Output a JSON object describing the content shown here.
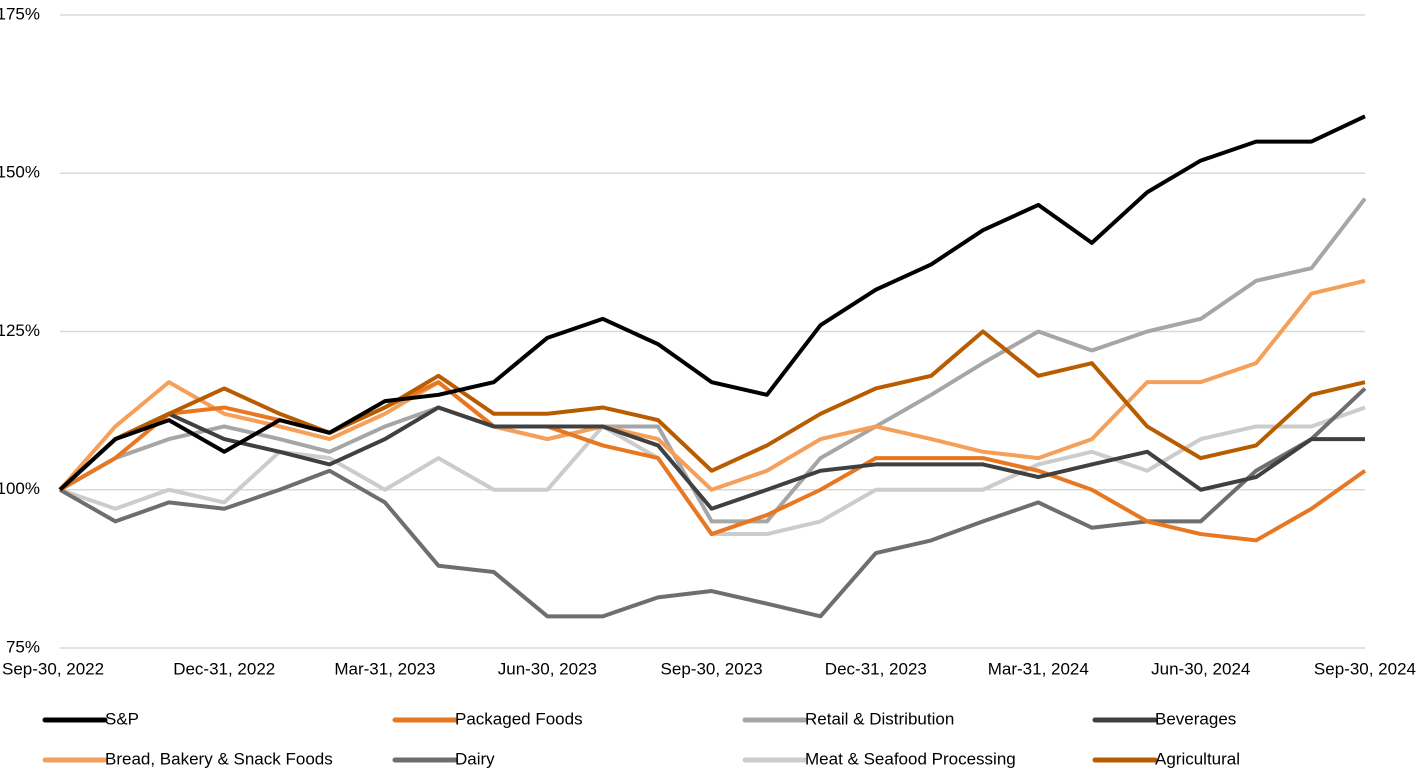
{
  "chart_data": {
    "type": "line",
    "x": [
      "2022-09-30",
      "2022-10-31",
      "2022-11-30",
      "2022-12-31",
      "2023-01-31",
      "2023-02-28",
      "2023-03-31",
      "2023-04-30",
      "2023-05-31",
      "2023-06-30",
      "2023-07-31",
      "2023-08-31",
      "2023-09-30",
      "2023-10-31",
      "2023-11-30",
      "2023-12-31",
      "2024-01-31",
      "2024-02-29",
      "2024-03-31",
      "2024-04-30",
      "2024-05-31",
      "2024-06-30",
      "2024-07-31",
      "2024-08-31",
      "2024-09-30"
    ],
    "xlim": [
      "2022-09-30",
      "2024-09-30"
    ],
    "xticks": [
      {
        "value": "2022-09-30",
        "label": "Sep-30, 2022"
      },
      {
        "value": "2022-12-31",
        "label": "Dec-31, 2022"
      },
      {
        "value": "2023-03-31",
        "label": "Mar-31, 2023"
      },
      {
        "value": "2023-06-30",
        "label": "Jun-30, 2023"
      },
      {
        "value": "2023-09-30",
        "label": "Sep-30, 2023"
      },
      {
        "value": "2023-12-31",
        "label": "Dec-31, 2023"
      },
      {
        "value": "2024-03-31",
        "label": "Mar-31, 2024"
      },
      {
        "value": "2024-06-30",
        "label": "Jun-30, 2024"
      },
      {
        "value": "2024-09-30",
        "label": "Sep-30, 2024"
      }
    ],
    "ylim": [
      75,
      175
    ],
    "yticks": [
      {
        "value": 75,
        "label": "75%"
      },
      {
        "value": 100,
        "label": "100%"
      },
      {
        "value": 125,
        "label": "125%"
      },
      {
        "value": 150,
        "label": "150%"
      },
      {
        "value": 175,
        "label": "175%"
      }
    ],
    "grid": true,
    "legend": "bottom",
    "series": [
      {
        "name": "S&P",
        "color": "#000000",
        "values": [
          100,
          108,
          111,
          106,
          111,
          109,
          114,
          115,
          117,
          124,
          127,
          123,
          117,
          115,
          126,
          131.6,
          135.6,
          141,
          145,
          139,
          147,
          152,
          155,
          155,
          159
        ]
      },
      {
        "name": "Packaged Foods",
        "color": "#e87722",
        "values": [
          100,
          105,
          112,
          113,
          111,
          109,
          113,
          117,
          110,
          110,
          107,
          105,
          93,
          96,
          100,
          105,
          105,
          105,
          103,
          100,
          95,
          93,
          92,
          97,
          103
        ]
      },
      {
        "name": "Retail & Distribution",
        "color": "#a6a6a6",
        "values": [
          100,
          105,
          108,
          110,
          108,
          106,
          110,
          113,
          110,
          108,
          110,
          110,
          95,
          95,
          105,
          110,
          115,
          120,
          125,
          122,
          125,
          127,
          133,
          135,
          146
        ]
      },
      {
        "name": "Beverages",
        "color": "#404040",
        "values": [
          100,
          108,
          112,
          108,
          106,
          104,
          108,
          113,
          110,
          110,
          110,
          107,
          97,
          100,
          103,
          104,
          104,
          104,
          102,
          104,
          106,
          100,
          102,
          108,
          108
        ]
      },
      {
        "name": "Bread, Bakery & Snack Foods",
        "color": "#f5a05a",
        "values": [
          100,
          110,
          117,
          112,
          110,
          108,
          112,
          117,
          110,
          108,
          110,
          108,
          100,
          103,
          108,
          110,
          108,
          106,
          105,
          108,
          117,
          117,
          120,
          131,
          133
        ]
      },
      {
        "name": "Dairy",
        "color": "#6e6e6e",
        "values": [
          100,
          95,
          98,
          97,
          100,
          103,
          98,
          88,
          87,
          80,
          80,
          83,
          84,
          82,
          80,
          90,
          92,
          95,
          98,
          94,
          95,
          95,
          103,
          108,
          116
        ]
      },
      {
        "name": "Meat & Seafood Processing",
        "color": "#cccccc",
        "values": [
          100,
          97,
          100,
          98,
          106,
          105,
          100,
          105,
          100,
          100,
          110,
          105,
          93,
          93,
          95,
          100,
          100,
          100,
          104,
          106,
          103,
          108,
          110,
          110,
          113
        ]
      },
      {
        "name": "Agricultural",
        "color": "#b85c00",
        "values": [
          100,
          108,
          112,
          116,
          112,
          109,
          113,
          118,
          112,
          112,
          113,
          111,
          103,
          107,
          112,
          116,
          118,
          125,
          118,
          120,
          110,
          105,
          107,
          115,
          117
        ]
      }
    ]
  }
}
